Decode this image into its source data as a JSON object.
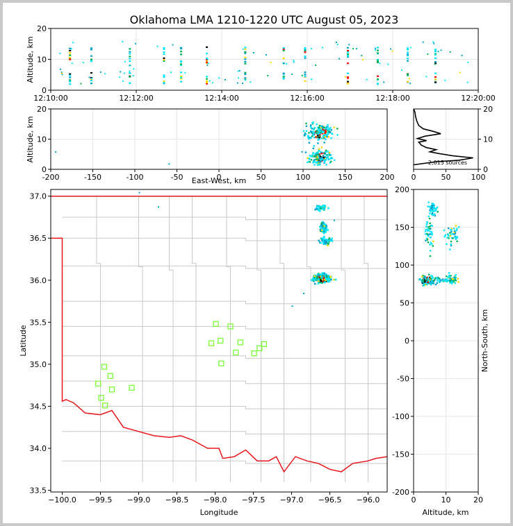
{
  "title": "Oklahoma LMA 1210-1220 UTC August 05, 2023",
  "source_count_label": "2,015 sources",
  "colors": {
    "state_border": "#e8131b",
    "county_lines": "#c8c8c8",
    "stations": "#7cfc34",
    "density_palette": [
      "#00e5ff",
      "#00a0c8",
      "#00b050",
      "#ffd700",
      "#ff8c00",
      "#ff0000",
      "#000000"
    ]
  },
  "chart_data": [
    {
      "id": "time-altitude",
      "type": "heatmap",
      "xlabel": "",
      "ylabel": "Altitude, km",
      "x_ticks": [
        "12:10:00",
        "12:12:00",
        "12:14:00",
        "12:16:00",
        "12:18:00",
        "12:20:00"
      ],
      "xlim_minutes": [
        0,
        10
      ],
      "ylim": [
        0,
        20
      ],
      "y_ticks": [
        0,
        10,
        20
      ],
      "grid": true,
      "columns_minutes": [
        0.45,
        0.95,
        1.85,
        2.65,
        3.05,
        3.65,
        4.55,
        5.45,
        5.95,
        6.95,
        7.65,
        8.35,
        9.0
      ]
    },
    {
      "id": "eastwest-altitude",
      "type": "heatmap",
      "xlabel": "East-West, km",
      "ylabel": "Altitude, km",
      "xlim": [
        -200,
        200
      ],
      "x_ticks": [
        -200,
        -150,
        -100,
        -50,
        0,
        50,
        100,
        150,
        200
      ],
      "ylim": [
        0,
        20
      ],
      "y_ticks": [
        0,
        10,
        20
      ],
      "grid": true,
      "clusters": [
        {
          "x": 120,
          "y": 12,
          "sx": 12,
          "sy": 2.0
        },
        {
          "x": 120,
          "y": 4,
          "sx": 10,
          "sy": 1.8
        }
      ]
    },
    {
      "id": "altitude-histogram",
      "type": "line",
      "xlim": [
        0,
        100
      ],
      "x_ticks": [
        0,
        50,
        100
      ],
      "ylim": [
        0,
        20
      ],
      "y_ticks": [
        0,
        10,
        20
      ],
      "grid": true,
      "profile": [
        [
          0,
          1.5
        ],
        [
          35,
          2.5
        ],
        [
          70,
          3.0
        ],
        [
          92,
          3.8
        ],
        [
          60,
          4.5
        ],
        [
          40,
          5.2
        ],
        [
          25,
          5.8
        ],
        [
          35,
          6.5
        ],
        [
          20,
          7.2
        ],
        [
          12,
          8.0
        ],
        [
          8,
          9.0
        ],
        [
          20,
          9.5
        ],
        [
          6,
          10.2
        ],
        [
          18,
          11.0
        ],
        [
          42,
          11.8
        ],
        [
          30,
          12.6
        ],
        [
          15,
          13.4
        ],
        [
          8,
          14.5
        ],
        [
          5,
          16.0
        ],
        [
          3,
          17.5
        ],
        [
          2,
          19.0
        ],
        [
          0,
          20
        ]
      ]
    },
    {
      "id": "plan-view",
      "type": "scatter",
      "xlabel": "Longitude",
      "ylabel": "Latitude",
      "xlim": [
        -100.15,
        -95.75
      ],
      "x_ticks": [
        -100.0,
        -99.5,
        -99.0,
        -98.5,
        -98.0,
        -97.5,
        -97.0,
        -96.5,
        -96.0
      ],
      "x_tick_labels": [
        "−100.0",
        "−99.5",
        "−99.0",
        "−98.5",
        "−98.0",
        "−97.5",
        "−97.0",
        "−96.5",
        "−96.0"
      ],
      "ylim": [
        33.48,
        37.08
      ],
      "y_ticks": [
        33.5,
        34.0,
        34.5,
        35.0,
        35.5,
        36.0,
        36.5,
        37.0
      ],
      "stations": [
        [
          -99.45,
          34.97
        ],
        [
          -99.37,
          34.86
        ],
        [
          -99.53,
          34.77
        ],
        [
          -99.35,
          34.7
        ],
        [
          -99.09,
          34.72
        ],
        [
          -99.49,
          34.6
        ],
        [
          -99.44,
          34.51
        ],
        [
          -97.99,
          35.48
        ],
        [
          -97.8,
          35.45
        ],
        [
          -98.05,
          35.25
        ],
        [
          -97.93,
          35.28
        ],
        [
          -97.67,
          35.26
        ],
        [
          -97.36,
          35.24
        ],
        [
          -97.42,
          35.19
        ],
        [
          -97.73,
          35.14
        ],
        [
          -97.49,
          35.13
        ],
        [
          -97.92,
          35.01
        ]
      ],
      "clusters": [
        {
          "lon": -96.6,
          "lat": 36.02,
          "slon": 0.08,
          "slat": 0.035,
          "hot": true
        },
        {
          "lon": -96.55,
          "lat": 36.47,
          "slon": 0.05,
          "slat": 0.03,
          "hot": false
        },
        {
          "lon": -96.58,
          "lat": 36.62,
          "slon": 0.04,
          "slat": 0.04,
          "hot": false
        },
        {
          "lon": -96.62,
          "lat": 36.86,
          "slon": 0.05,
          "slat": 0.02,
          "hot": false
        }
      ]
    },
    {
      "id": "altitude-northsouth",
      "type": "heatmap",
      "xlabel": "Altitude, km",
      "ylabel": "North-South, km",
      "xlim": [
        0,
        20
      ],
      "x_ticks": [
        0,
        10,
        20
      ],
      "ylim": [
        -200,
        200
      ],
      "y_ticks": [
        -200,
        -150,
        -100,
        -50,
        0,
        50,
        100,
        150,
        200
      ],
      "grid": true,
      "clusters": [
        {
          "x": 4,
          "y": 80,
          "sx": 1.5,
          "sy": 4,
          "hot": true
        },
        {
          "x": 12,
          "y": 82,
          "sx": 1.5,
          "sy": 4,
          "hot": false
        },
        {
          "x": 8,
          "y": 80,
          "sx": 3,
          "sy": 3,
          "hot": false
        },
        {
          "x": 5,
          "y": 140,
          "sx": 1,
          "sy": 15,
          "hot": false
        },
        {
          "x": 12,
          "y": 140,
          "sx": 1.5,
          "sy": 10,
          "hot": false
        },
        {
          "x": 6,
          "y": 175,
          "sx": 1,
          "sy": 6,
          "hot": false
        }
      ]
    }
  ]
}
